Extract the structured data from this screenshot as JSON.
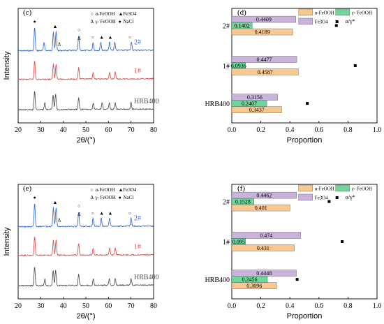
{
  "chart_data": [
    {
      "panel": "(c)",
      "type": "line",
      "xlabel": "2θ/(°)",
      "ylabel": "Intensity",
      "xlim": [
        20,
        80
      ],
      "xticks": [
        "20",
        "30",
        "40",
        "50",
        "60",
        "70",
        "80"
      ],
      "legend": [
        {
          "symbol": "○",
          "label": "α-FeOOH"
        },
        {
          "symbol": "▲",
          "label": "Fe3O4"
        },
        {
          "symbol": "Δ",
          "label": "γ- FeOOH"
        },
        {
          "symbol": "●",
          "label": "NaCl"
        }
      ],
      "series": [
        {
          "name": "2#",
          "color": "#3a6fd8",
          "peaks": [
            27.3,
            31.5,
            35.6,
            36.8,
            46.8,
            53.2,
            56.6,
            60.5,
            62.8,
            70.2
          ],
          "markers": [
            {
              "x": 27.3,
              "symbol": "●"
            },
            {
              "x": 36.4,
              "symbol": "▲"
            },
            {
              "x": 38.2,
              "symbol": "Δ"
            },
            {
              "x": 47.0,
              "symbol": "○"
            },
            {
              "x": 47.0,
              "symbol": "Δ"
            },
            {
              "x": 53.0,
              "symbol": "○"
            },
            {
              "x": 57.0,
              "symbol": "▲"
            },
            {
              "x": 60.8,
              "symbol": "▲"
            },
            {
              "x": 69.5,
              "symbol": "○"
            }
          ]
        },
        {
          "name": "1#",
          "color": "#e05050",
          "peaks": [
            27.3,
            35.6,
            36.8,
            46.8,
            53.2,
            60.5,
            63.0
          ]
        },
        {
          "name": "HRB400",
          "color": "#555555",
          "peaks": [
            27.3,
            31.8,
            35.5,
            36.6,
            46.8,
            53.3,
            57.2,
            60.4,
            63.0,
            70.0
          ]
        }
      ]
    },
    {
      "panel": "(d)",
      "type": "bar",
      "orientation": "horizontal",
      "xlabel": "Proportion",
      "xlim": [
        0.0,
        1.0
      ],
      "xticks": [
        "0.0",
        "0.2",
        "0.4",
        "0.6",
        "0.8",
        "1.0"
      ],
      "categories": [
        "2#",
        "1#",
        "HRB400"
      ],
      "legend_extra": "α/γ*",
      "series": [
        {
          "name": "Fe3O4",
          "color": "#c9b3dc",
          "values": [
            0.4409,
            0.4477,
            0.3156
          ],
          "labels": [
            "0.4409",
            "0.4477",
            "0.3156"
          ]
        },
        {
          "name": "γ- FeOOH",
          "color": "#6fd59a",
          "values": [
            0.1402,
            0.0936,
            0.2407
          ],
          "labels": [
            "0.1402",
            "0.0936",
            "0.2407"
          ]
        },
        {
          "name": "α-FeOOH",
          "color": "#f9c891",
          "values": [
            0.4189,
            0.4587,
            0.3437
          ],
          "labels": [
            "0.4189",
            "0.4587",
            "0.3437"
          ]
        }
      ],
      "ratio_points": [
        0.72,
        0.85,
        0.52
      ]
    },
    {
      "panel": "(e)",
      "type": "line",
      "xlabel": "2θ/(°)",
      "ylabel": "Intensity",
      "xlim": [
        20,
        80
      ],
      "xticks": [
        "20",
        "30",
        "40",
        "50",
        "60",
        "70",
        "80"
      ],
      "legend": [
        {
          "symbol": "○",
          "label": "α-FeOOH"
        },
        {
          "symbol": "▲",
          "label": "Fe3O4"
        },
        {
          "symbol": "Δ",
          "label": "γ- FeOOH"
        },
        {
          "symbol": "●",
          "label": "NaCl"
        }
      ],
      "series": [
        {
          "name": "2#",
          "color": "#3a6fd8",
          "peaks": [
            27.3,
            35.6,
            36.8,
            46.8,
            53.2,
            56.8,
            60.5,
            70.0
          ],
          "markers": [
            {
              "x": 27.3,
              "symbol": "●"
            },
            {
              "x": 36.4,
              "symbol": "▲"
            },
            {
              "x": 38.2,
              "symbol": "Δ"
            },
            {
              "x": 47.0,
              "symbol": "○"
            },
            {
              "x": 47.0,
              "symbol": "Δ"
            },
            {
              "x": 53.0,
              "symbol": "○"
            },
            {
              "x": 57.0,
              "symbol": "▲"
            },
            {
              "x": 60.8,
              "symbol": "▲"
            },
            {
              "x": 69.5,
              "symbol": "○"
            }
          ]
        },
        {
          "name": "1#",
          "color": "#e05050",
          "peaks": [
            27.3,
            35.6,
            36.8,
            46.8,
            53.2,
            60.5,
            63.0
          ]
        },
        {
          "name": "HRB400",
          "color": "#555555",
          "peaks": [
            27.3,
            31.8,
            35.5,
            36.6,
            46.8,
            53.3,
            60.4,
            63.0,
            70.0
          ]
        }
      ]
    },
    {
      "panel": "(f)",
      "type": "bar",
      "orientation": "horizontal",
      "xlabel": "Proportion",
      "xlim": [
        0.0,
        1.0
      ],
      "xticks": [
        "0.0",
        "0.2",
        "0.4",
        "0.6",
        "0.8",
        "1.0"
      ],
      "categories": [
        "2#",
        "1#",
        "HRB400"
      ],
      "legend_extra": "α/γ*",
      "series": [
        {
          "name": "Fe3O4",
          "color": "#c9b3dc",
          "values": [
            0.4462,
            0.474,
            0.4448
          ],
          "labels": [
            "0.4462",
            "0.474",
            "0.4448"
          ]
        },
        {
          "name": "γ- FeOOH",
          "color": "#6fd59a",
          "values": [
            0.1528,
            0.095,
            0.2456
          ],
          "labels": [
            "0.1528",
            "0.095",
            "0.2456"
          ]
        },
        {
          "name": "α-FeOOH",
          "color": "#f9c891",
          "values": [
            0.401,
            0.431,
            0.3096
          ],
          "labels": [
            "0.401",
            "0.431",
            "0.3096"
          ]
        }
      ],
      "ratio_points": [
        0.67,
        0.76,
        0.45
      ]
    }
  ]
}
